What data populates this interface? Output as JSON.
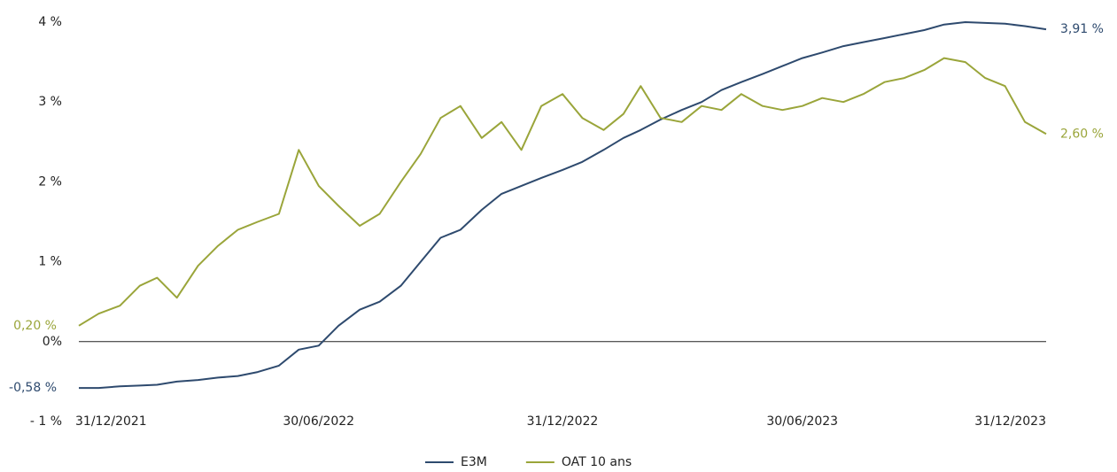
{
  "chart_data": {
    "type": "line",
    "x": [
      "31/12/2021",
      "15/01/2022",
      "31/01/2022",
      "15/02/2022",
      "28/02/2022",
      "15/03/2022",
      "31/03/2022",
      "15/04/2022",
      "30/04/2022",
      "15/05/2022",
      "31/05/2022",
      "15/06/2022",
      "30/06/2022",
      "15/07/2022",
      "31/07/2022",
      "15/08/2022",
      "31/08/2022",
      "15/09/2022",
      "30/09/2022",
      "15/10/2022",
      "31/10/2022",
      "15/11/2022",
      "30/11/2022",
      "15/12/2022",
      "31/12/2022",
      "15/01/2023",
      "31/01/2023",
      "15/02/2023",
      "28/02/2023",
      "15/03/2023",
      "31/03/2023",
      "15/04/2023",
      "30/04/2023",
      "15/05/2023",
      "31/05/2023",
      "15/06/2023",
      "30/06/2023",
      "15/07/2023",
      "31/07/2023",
      "15/08/2023",
      "31/08/2023",
      "15/09/2023",
      "30/09/2023",
      "15/10/2023",
      "31/10/2023",
      "15/11/2023",
      "30/11/2023",
      "15/12/2023",
      "31/12/2023"
    ],
    "series": [
      {
        "name": "E3M",
        "color": "#2e4a6e",
        "start_label": "-0,58 %",
        "end_label": "3,91 %",
        "values": [
          -0.58,
          -0.58,
          -0.56,
          -0.55,
          -0.54,
          -0.5,
          -0.48,
          -0.45,
          -0.43,
          -0.38,
          -0.3,
          -0.1,
          -0.05,
          0.2,
          0.4,
          0.5,
          0.7,
          1.0,
          1.3,
          1.4,
          1.65,
          1.85,
          1.95,
          2.05,
          2.15,
          2.25,
          2.4,
          2.55,
          2.65,
          2.78,
          2.9,
          3.0,
          3.15,
          3.25,
          3.35,
          3.45,
          3.55,
          3.62,
          3.7,
          3.75,
          3.8,
          3.85,
          3.9,
          3.97,
          4.0,
          3.99,
          3.98,
          3.95,
          3.91
        ]
      },
      {
        "name": "OAT 10 ans",
        "color": "#9aa53a",
        "start_label": "0,20 %",
        "end_label": "2,60 %",
        "values": [
          0.2,
          0.35,
          0.45,
          0.7,
          0.8,
          0.55,
          0.95,
          1.2,
          1.4,
          1.5,
          1.6,
          2.4,
          1.95,
          1.7,
          1.45,
          1.6,
          2.0,
          2.35,
          2.8,
          2.95,
          2.55,
          2.75,
          2.4,
          2.95,
          3.1,
          2.8,
          2.65,
          2.85,
          3.2,
          2.8,
          2.75,
          2.95,
          2.9,
          3.1,
          2.95,
          2.9,
          2.95,
          3.05,
          3.0,
          3.1,
          3.25,
          3.3,
          3.4,
          3.55,
          3.5,
          3.3,
          3.2,
          2.75,
          2.6
        ]
      }
    ],
    "xlim": [
      "31/12/2021",
      "31/12/2023"
    ],
    "xticks": [
      "31/12/2021",
      "30/06/2022",
      "31/12/2022",
      "30/06/2023",
      "31/12/2023"
    ],
    "ylim": [
      -1,
      4
    ],
    "yticks": [
      {
        "value": -1,
        "label": "- 1 %"
      },
      {
        "value": 0,
        "label": "0%"
      },
      {
        "value": 1,
        "label": "1 %"
      },
      {
        "value": 2,
        "label": "2 %"
      },
      {
        "value": 3,
        "label": "3 %"
      },
      {
        "value": 4,
        "label": "4 %"
      }
    ],
    "zero_line": true,
    "legend": "bottom"
  }
}
